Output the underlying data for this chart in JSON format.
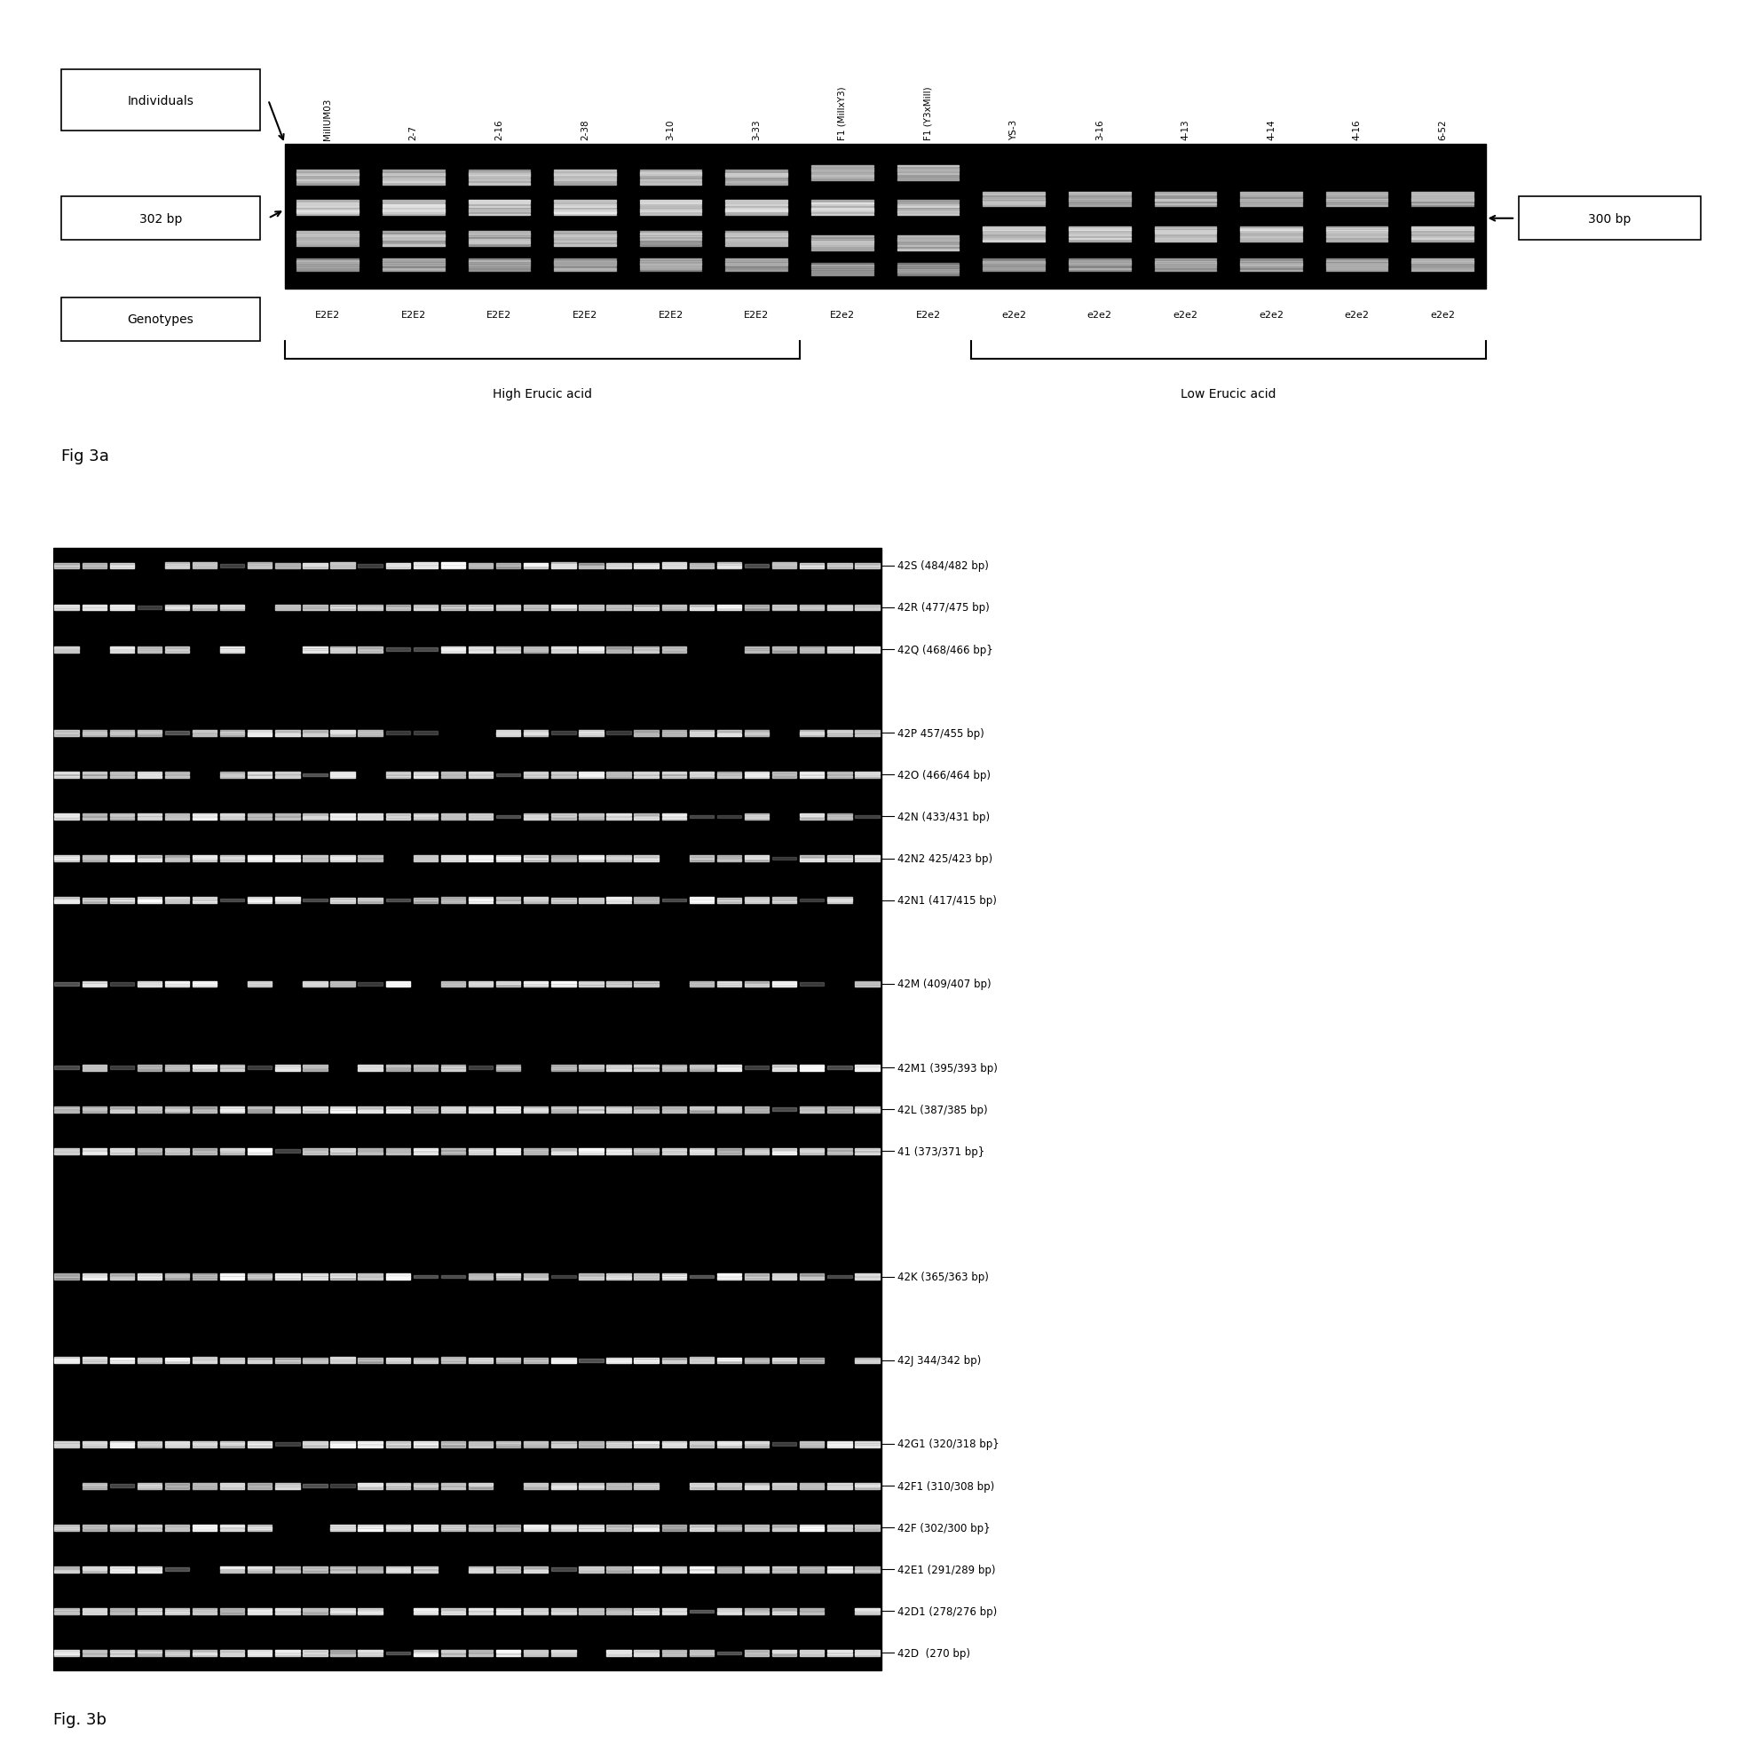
{
  "fig3a": {
    "individuals_label": "Individuals",
    "bp302_label": "302 bp",
    "bp300_label": "300 bp",
    "genotypes_label": "Genotypes",
    "lane_labels": [
      "MillUM03",
      "2-7",
      "2-16",
      "2-38",
      "3-10",
      "3-33",
      "F1 (MillxY3)",
      "F1 (Y3xMill)",
      "YS-3",
      "3-16",
      "4-13",
      "4-14",
      "4-16",
      "6-52"
    ],
    "genotypes": [
      "E2E2",
      "E2E2",
      "E2E2",
      "E2E2",
      "E2E2",
      "E2E2",
      "E2e2",
      "E2e2",
      "e2e2",
      "e2e2",
      "e2e2",
      "e2e2",
      "e2e2",
      "e2e2"
    ],
    "high_erucic_label": "High Erucic acid",
    "low_erucic_label": "Low Erucic acid",
    "n_high": 6,
    "n_het": 2,
    "n_low": 6
  },
  "fig3b": {
    "band_labels": [
      "42S (484/482 bp)",
      "42R (477/475 bp)",
      "42Q (468/466 bp}",
      "",
      "42P 457/455 bp)",
      "42O (466/464 bp)",
      "42N (433/431 bp)",
      "42N2 425/423 bp)",
      "42N1 (417/415 bp)",
      "",
      "42M (409/407 bp)",
      "",
      "42M1 (395/393 bp)",
      "42L (387/385 bp)",
      "41 (373/371 bp}",
      "",
      "",
      "42K (365/363 bp)",
      "",
      "42J 344/342 bp)",
      "",
      "42G1 (320/318 bp}",
      "42F1 (310/308 bp)",
      "42F (302/300 bp}",
      "42E1 (291/289 bp)",
      "42D1 (278/276 bp)",
      "42D  (270 bp)"
    ]
  },
  "fig3a_caption": "Fig 3a",
  "fig3b_caption": "Fig. 3b",
  "background_color": "#ffffff",
  "gel_bg_color": "#000000",
  "band_color_bright": "#d8d8d8",
  "band_color_mid": "#888888",
  "text_color": "#000000"
}
